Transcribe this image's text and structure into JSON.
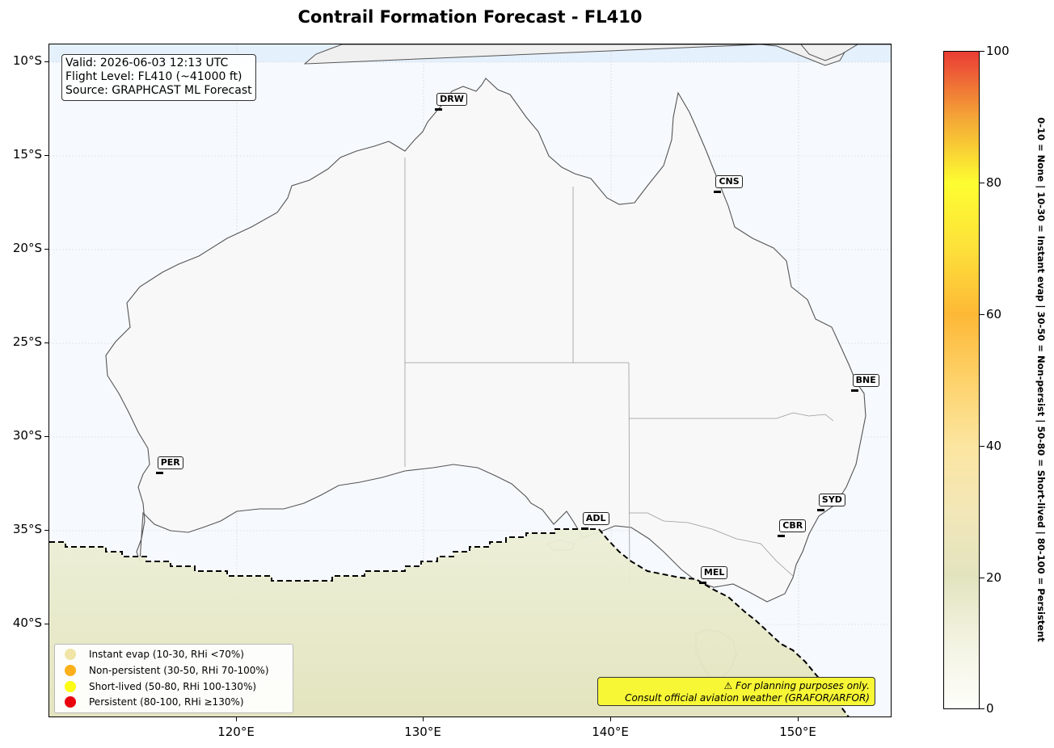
{
  "title": "Contrail Formation Forecast - FL410",
  "info": {
    "valid": "Valid: 2026-06-03 12:13 UTC",
    "flight_level": "Flight Level: FL410 (~41000 ft)",
    "source": "Source: GRAPHCAST ML Forecast"
  },
  "axes": {
    "lat_ticks": [
      "10°S",
      "15°S",
      "20°S",
      "25°S",
      "30°S",
      "35°S",
      "40°S"
    ],
    "lon_ticks": [
      "120°E",
      "130°E",
      "140°E",
      "150°E"
    ],
    "lon_range": [
      110,
      155
    ],
    "lat_range": [
      -45,
      -9
    ]
  },
  "cities": [
    {
      "code": "DRW",
      "lon": 130.8,
      "lat": -12.5
    },
    {
      "code": "CNS",
      "lon": 145.7,
      "lat": -16.9
    },
    {
      "code": "BNE",
      "lon": 153.0,
      "lat": -27.5
    },
    {
      "code": "PER",
      "lon": 115.9,
      "lat": -31.9
    },
    {
      "code": "SYD",
      "lon": 151.2,
      "lat": -33.9
    },
    {
      "code": "ADL",
      "lon": 138.6,
      "lat": -34.9
    },
    {
      "code": "CBR",
      "lon": 149.1,
      "lat": -35.3
    },
    {
      "code": "MEL",
      "lon": 144.9,
      "lat": -37.8
    }
  ],
  "legend": [
    {
      "label": "Instant evap (10-30, RHi <70%)",
      "color": "#f0e4a6"
    },
    {
      "label": "Non-persistent (30-50, RHi 70-100%)",
      "color": "#fdb01a"
    },
    {
      "label": "Short-lived (50-80, RHi 100-130%)",
      "color": "#fcfc14"
    },
    {
      "label": "Persistent (80-100, RHi ≥130%)",
      "color": "#e8000c"
    }
  ],
  "warning": {
    "line1": "⚠ For planning purposes only.",
    "line2": "Consult official aviation weather (GRAFOR/ARFOR)"
  },
  "colorbar": {
    "ticks": [
      "0",
      "20",
      "40",
      "60",
      "80",
      "100"
    ],
    "range": [
      0,
      100
    ],
    "label": "0-10 = None  |  10-30 = Instant evap  |  30-50 = Non-persist  |  50-80 = Short-lived  |  80-100 = Persistent"
  }
}
